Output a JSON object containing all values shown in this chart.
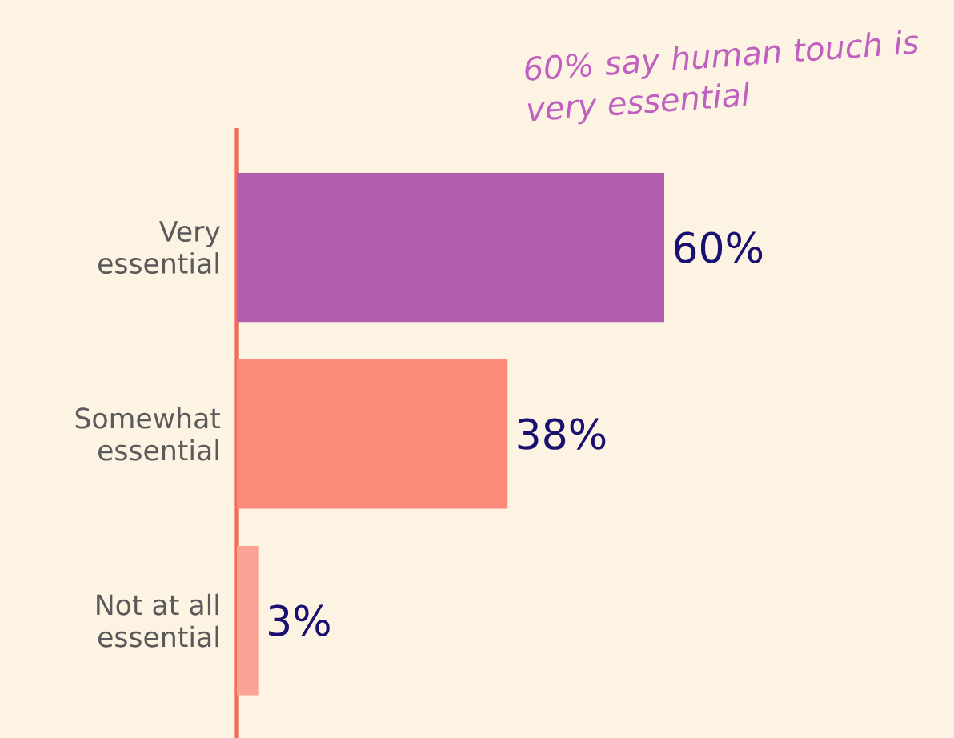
{
  "chart_data": {
    "type": "bar",
    "orientation": "horizontal",
    "categories": [
      "Very essential",
      "Somewhat essential",
      "Not at all essential"
    ],
    "values": [
      60,
      38,
      3
    ],
    "colors": [
      "#b35fb0",
      "#fb8a78",
      "#f9a396"
    ],
    "value_labels": [
      "60%",
      "38%",
      "3%"
    ],
    "annotations": [
      "60% say human touch is very essential"
    ]
  }
}
